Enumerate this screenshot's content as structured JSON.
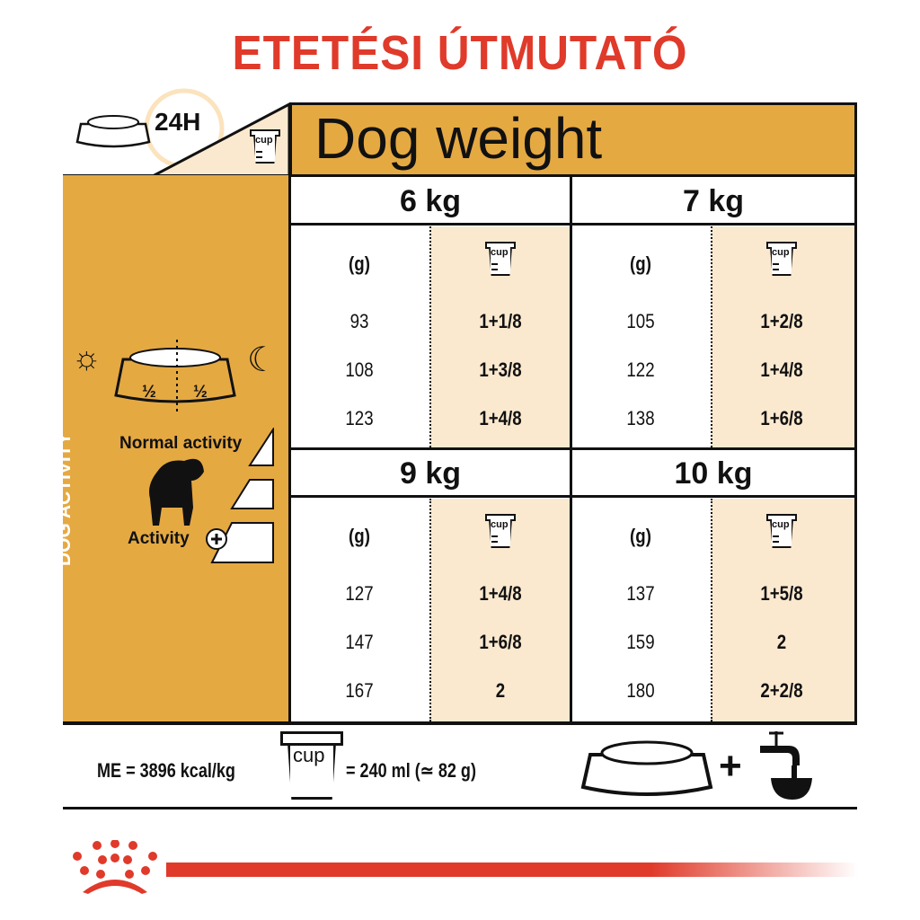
{
  "title": "ETETÉSI ÚTMUTATÓ",
  "header": {
    "period": "24H",
    "cup_label": "cup",
    "dog_weight": "Dog weight"
  },
  "left_panel": {
    "section_label": "DOG ACTIVITY",
    "half_left": "½",
    "half_right": "½",
    "normal_activity": "Normal activity",
    "activity_plus": "Activity"
  },
  "table": {
    "grams_label": "(g)",
    "cup_label": "cup",
    "blocks": [
      {
        "weight": "6 kg",
        "rows": [
          [
            "93",
            "1+1/8"
          ],
          [
            "108",
            "1+3/8"
          ],
          [
            "123",
            "1+4/8"
          ]
        ]
      },
      {
        "weight": "7 kg",
        "rows": [
          [
            "105",
            "1+2/8"
          ],
          [
            "122",
            "1+4/8"
          ],
          [
            "138",
            "1+6/8"
          ]
        ]
      },
      {
        "weight": "9 kg",
        "rows": [
          [
            "127",
            "1+4/8"
          ],
          [
            "147",
            "1+6/8"
          ],
          [
            "167",
            "2"
          ]
        ]
      },
      {
        "weight": "10 kg",
        "rows": [
          [
            "137",
            "1+5/8"
          ],
          [
            "159",
            "2"
          ],
          [
            "180",
            "2+2/8"
          ]
        ]
      }
    ]
  },
  "footer": {
    "energy": "ME = 3896 kcal/kg",
    "cup_label": "cup",
    "cup_equivalent": "= 240 ml (≃ 82 g)",
    "plus": "+"
  },
  "colors": {
    "title": "#e03a2a",
    "accent": "#e5a942",
    "cream": "#fbe9cf",
    "brand_red": "#e03a2a"
  }
}
